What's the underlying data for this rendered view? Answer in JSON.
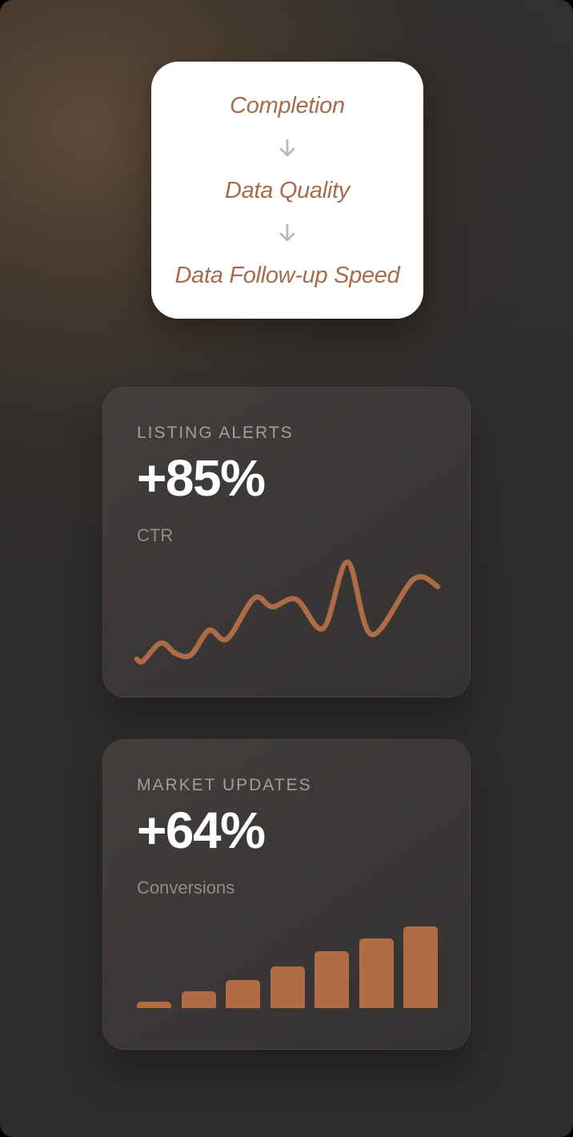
{
  "funnel": {
    "steps": [
      "Completion",
      "Data Quality",
      "Data Follow-up Speed"
    ],
    "text_color": "#a66c4b",
    "arrow_icon": "arrow-down",
    "bg_color": "#ffffff"
  },
  "cards": [
    {
      "title": "LISTING ALERTS",
      "metric": "+85%",
      "sublabel": "CTR"
    },
    {
      "title": "MARKET UPDATES",
      "metric": "+64%",
      "sublabel": "Conversions"
    }
  ],
  "chart_data": [
    {
      "type": "line",
      "title": "LISTING ALERTS CTR sparkline",
      "x": [
        0,
        2,
        8,
        13,
        18,
        24,
        30,
        39,
        45,
        53,
        62,
        70,
        78,
        92,
        100
      ],
      "values": [
        6,
        4,
        21,
        11,
        10,
        33,
        25,
        63,
        55,
        62,
        35,
        97,
        29,
        81,
        74
      ],
      "color": "#ad6b46",
      "line_width": 6.5,
      "axes": "none",
      "grid": false,
      "legend": false
    },
    {
      "type": "bar",
      "title": "MARKET UPDATES Conversions sparkline",
      "categories": [
        "1",
        "2",
        "3",
        "4",
        "5",
        "6",
        "7"
      ],
      "values": [
        8,
        21,
        34,
        51,
        70,
        85,
        100
      ],
      "ylim": [
        0,
        100
      ],
      "color": "#b06c44",
      "axes": "none",
      "grid": false,
      "legend": false
    }
  ],
  "colors": {
    "accent_orange": "#ad6b46",
    "bar_orange": "#b06c44",
    "funnel_text": "#a66c4b",
    "arrow_gray": "#b9b9b9",
    "card_bg": "#3b3837",
    "bg_glow": "#584839",
    "bg_base": "#2d2b2a",
    "title_gray": "#a29e9a",
    "sublabel_gray": "#918d89",
    "metric_white": "#ffffff"
  }
}
